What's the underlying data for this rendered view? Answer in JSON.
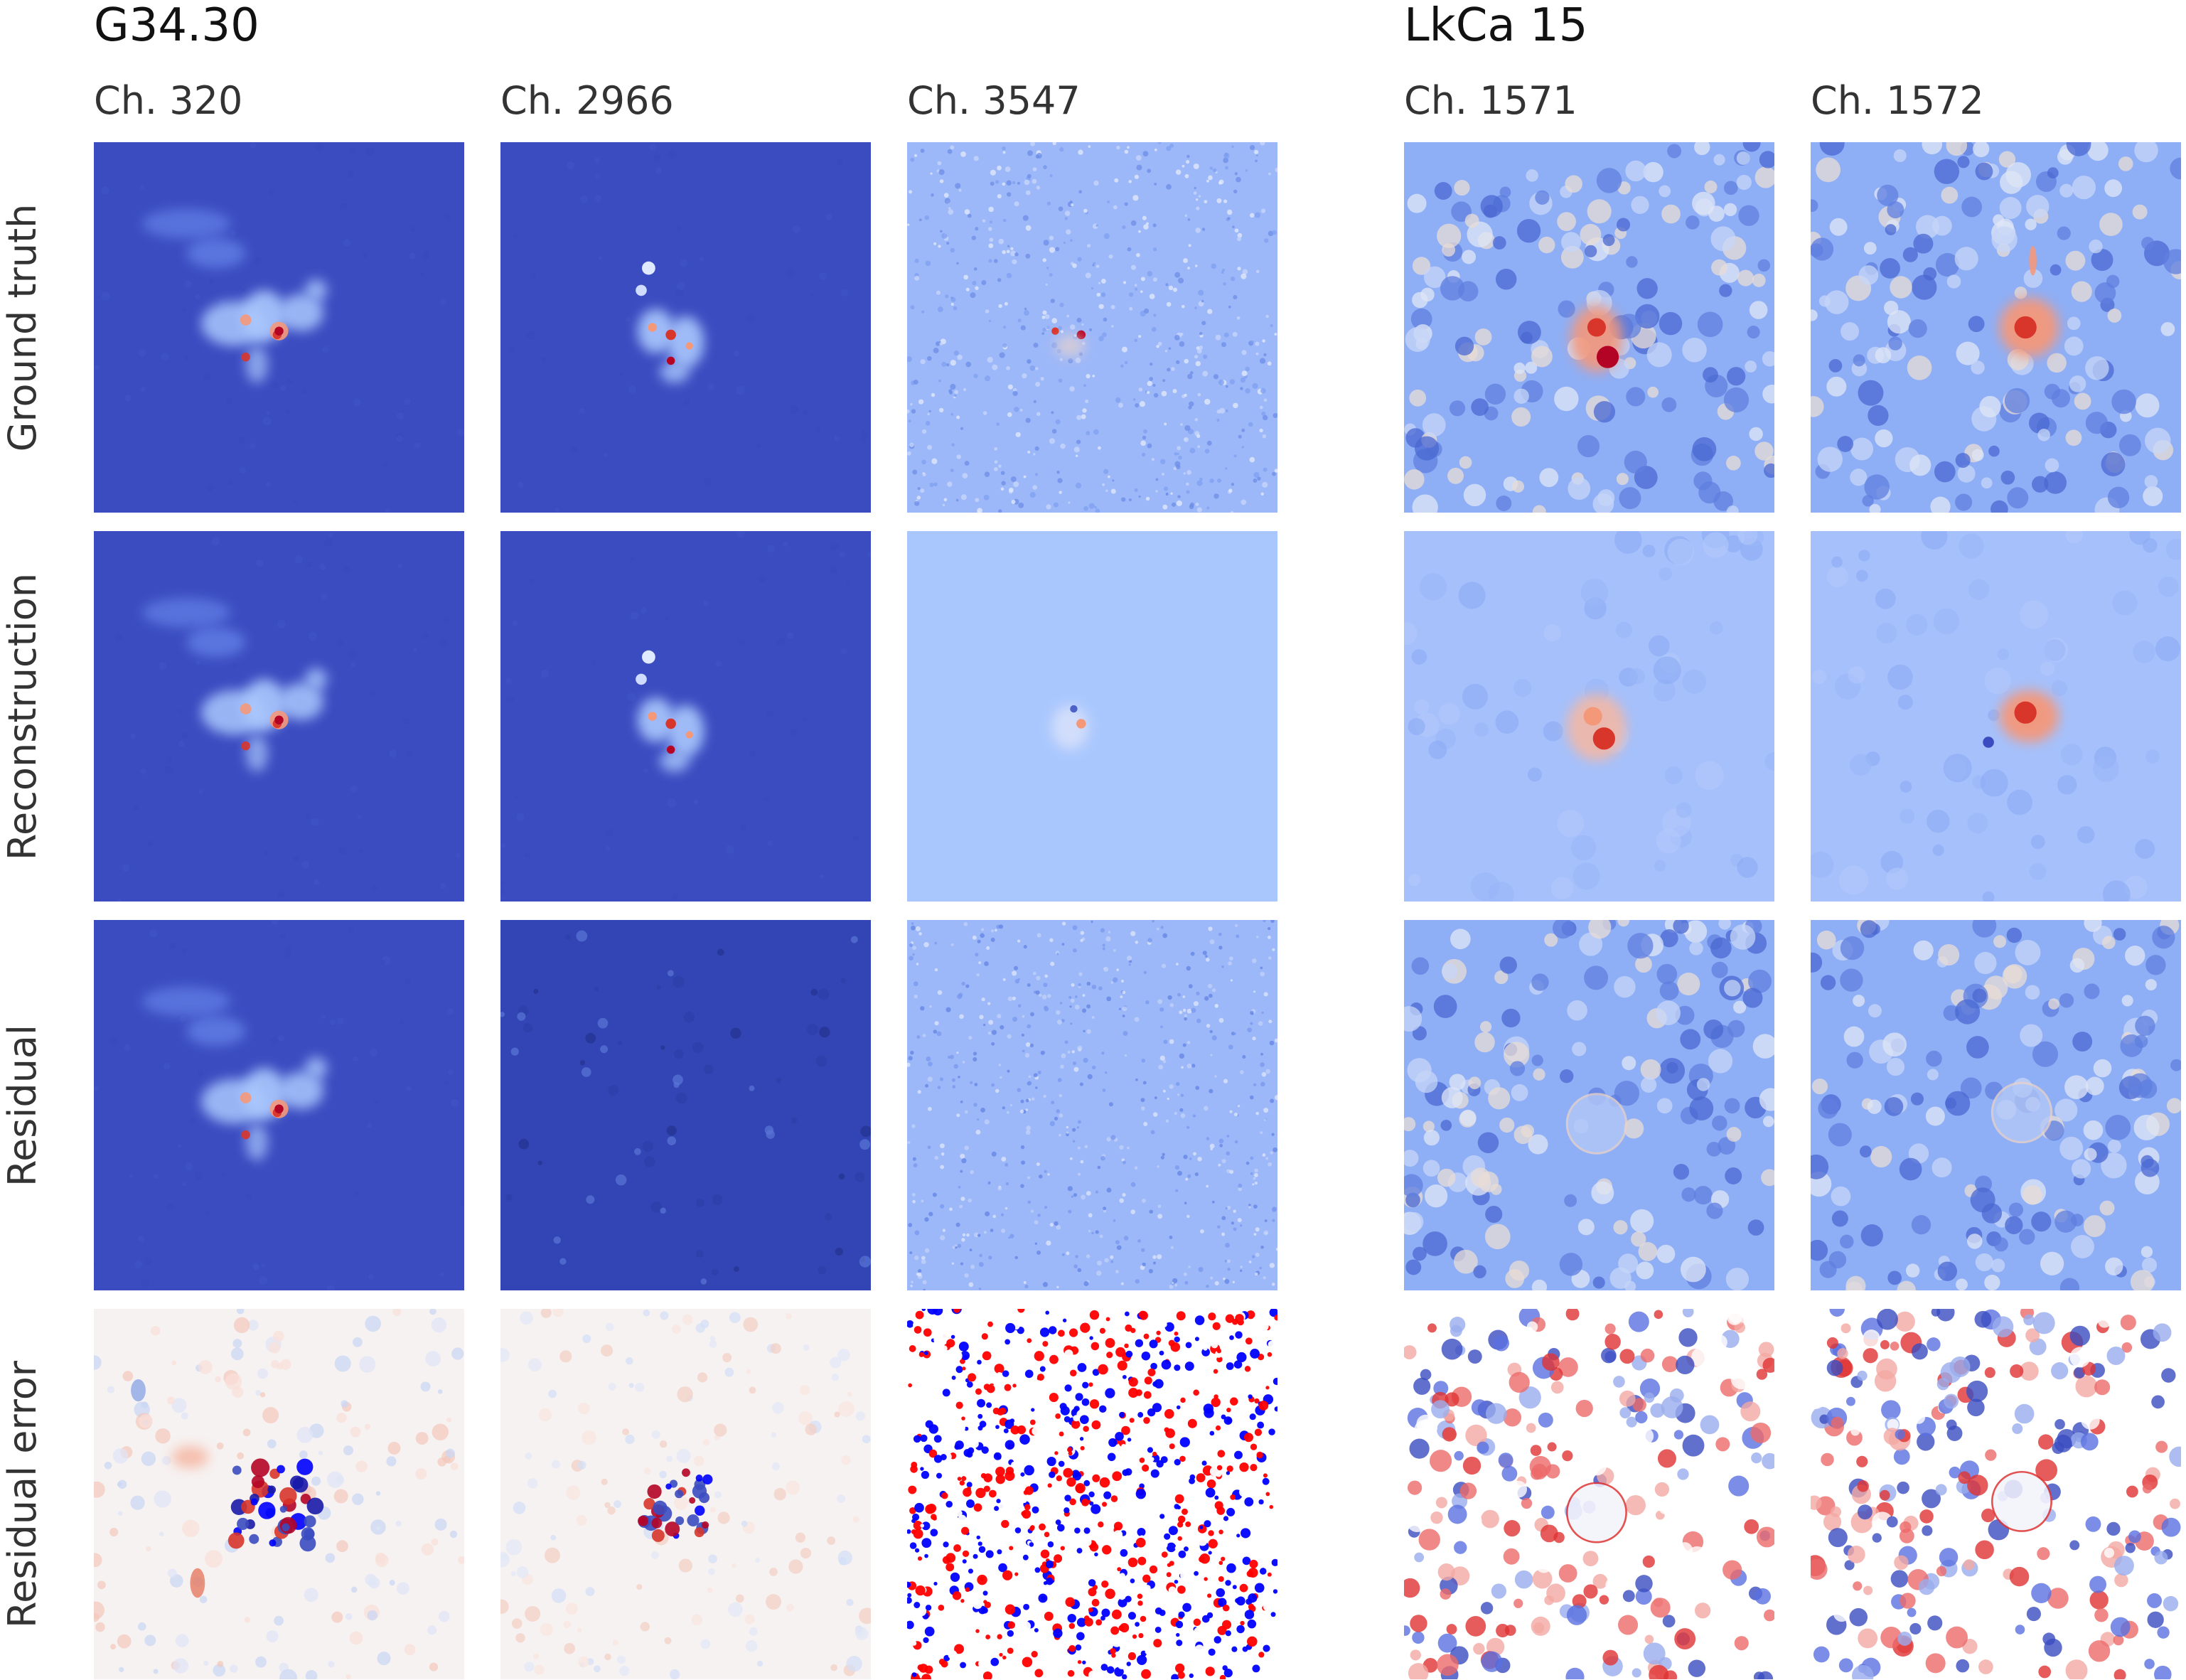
{
  "figure": {
    "groups": [
      {
        "title": "G34.30",
        "columns": [
          "Ch. 320",
          "Ch. 2966",
          "Ch. 3547"
        ]
      },
      {
        "title": "LkCa 15",
        "columns": [
          "Ch. 1571",
          "Ch. 1572"
        ]
      }
    ],
    "rows": [
      "Ground truth",
      "Reconstruction",
      "Residual",
      "Residual error"
    ],
    "colormap": "coolwarm",
    "colors": {
      "deep_blue": "#3b4cc0",
      "mid_blue": "#6f92f3",
      "light_blue": "#aac7fd",
      "white": "#f7f7f7",
      "light_red": "#f4987a",
      "red": "#d8352b",
      "deep_red": "#b40426",
      "pure_red": "#ff0000",
      "pure_blue": "#0000ff"
    }
  }
}
